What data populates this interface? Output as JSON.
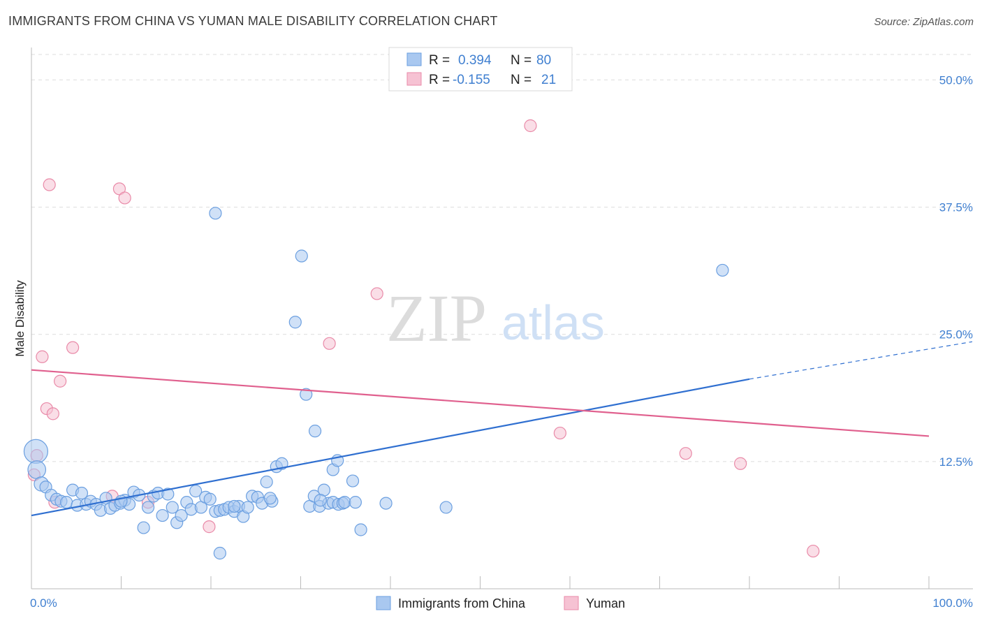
{
  "title": "IMMIGRANTS FROM CHINA VS YUMAN MALE DISABILITY CORRELATION CHART",
  "source": "Source: ZipAtlas.com",
  "watermark": {
    "zip": "ZIP",
    "atlas": "atlas"
  },
  "legend_top": [
    {
      "r_label": "R =",
      "r_value": "0.394",
      "n_label": "N =",
      "n_value": "80"
    },
    {
      "r_label": "R =",
      "r_value": "-0.155",
      "n_label": "N =",
      "n_value": "21"
    }
  ],
  "legend_bottom": [
    "Immigrants from China",
    "Yuman"
  ],
  "colors": {
    "blue_fill": "#a9c8f0",
    "blue_stroke": "#6b9fe0",
    "blue_line": "#2f6fd0",
    "pink_fill": "#f6c2d3",
    "pink_stroke": "#e98aa8",
    "pink_line": "#e0608e",
    "tick_label": "#3f7fd0",
    "grid": "#dddddd"
  },
  "chart_data": {
    "type": "scatter",
    "xlabel": "",
    "ylabel": "Male Disability",
    "xlim": [
      0,
      100
    ],
    "ylim": [
      0,
      52.5
    ],
    "x_tick_labels": [
      {
        "value": 0,
        "label": "0.0%"
      },
      {
        "value": 100,
        "label": "100.0%"
      }
    ],
    "y_ticks": [
      {
        "value": 12.5,
        "label": "12.5%"
      },
      {
        "value": 25.0,
        "label": "25.0%"
      },
      {
        "value": 37.5,
        "label": "37.5%"
      },
      {
        "value": 50.0,
        "label": "50.0%"
      }
    ],
    "grid": "horizontal dashed",
    "series": [
      {
        "name": "Immigrants from China",
        "color": "#6b9fe0",
        "points": [
          [
            0.5,
            13.5,
            2.0
          ],
          [
            0.6,
            11.7,
            1.5
          ],
          [
            1.1,
            10.3,
            1.2
          ],
          [
            1.6,
            10.0,
            1.0
          ],
          [
            2.2,
            9.2,
            1.0
          ],
          [
            2.8,
            8.8,
            1.0
          ],
          [
            3.3,
            8.6,
            1.0
          ],
          [
            3.9,
            8.5,
            1.0
          ],
          [
            4.6,
            9.7,
            1.0
          ],
          [
            5.1,
            8.2,
            1.0
          ],
          [
            5.6,
            9.4,
            1.0
          ],
          [
            6.1,
            8.3,
            1.0
          ],
          [
            6.6,
            8.6,
            1.0
          ],
          [
            7.2,
            8.3,
            1.0
          ],
          [
            7.7,
            7.7,
            1.0
          ],
          [
            8.3,
            8.9,
            1.0
          ],
          [
            8.8,
            7.9,
            1.0
          ],
          [
            9.3,
            8.2,
            1.0
          ],
          [
            9.9,
            8.4,
            1.0
          ],
          [
            10.4,
            8.7,
            1.0
          ],
          [
            10.9,
            8.3,
            1.0
          ],
          [
            11.4,
            9.5,
            1.0
          ],
          [
            12.0,
            9.2,
            1.0
          ],
          [
            12.5,
            6.0,
            1.0
          ],
          [
            13.0,
            8.0,
            1.0
          ],
          [
            13.6,
            9.1,
            1.0
          ],
          [
            14.1,
            9.4,
            1.0
          ],
          [
            14.6,
            7.2,
            1.0
          ],
          [
            15.2,
            9.3,
            1.0
          ],
          [
            15.7,
            8.0,
            1.0
          ],
          [
            16.2,
            6.5,
            1.0
          ],
          [
            16.7,
            7.2,
            1.0
          ],
          [
            17.3,
            8.5,
            1.0
          ],
          [
            17.8,
            7.8,
            1.0
          ],
          [
            18.3,
            9.6,
            1.0
          ],
          [
            18.9,
            8.0,
            1.0
          ],
          [
            19.4,
            9.0,
            1.0
          ],
          [
            19.9,
            8.8,
            1.0
          ],
          [
            20.5,
            7.6,
            1.0
          ],
          [
            21.0,
            7.7,
            1.0
          ],
          [
            21.5,
            7.8,
            1.0
          ],
          [
            22.0,
            8.0,
            1.0
          ],
          [
            22.6,
            7.6,
            1.0
          ],
          [
            23.1,
            8.1,
            1.0
          ],
          [
            23.6,
            7.1,
            1.0
          ],
          [
            24.1,
            8.0,
            1.0
          ],
          [
            24.6,
            9.1,
            1.0
          ],
          [
            20.5,
            36.9,
            1.0
          ],
          [
            21.0,
            3.5,
            1.0
          ],
          [
            22.6,
            8.1,
            1.0
          ],
          [
            25.2,
            9.0,
            1.0
          ],
          [
            25.7,
            8.4,
            1.0
          ],
          [
            26.2,
            10.5,
            1.0
          ],
          [
            26.8,
            8.6,
            1.0
          ],
          [
            27.3,
            12.0,
            1.0
          ],
          [
            27.9,
            12.3,
            1.0
          ],
          [
            31.0,
            8.1,
            1.0
          ],
          [
            31.5,
            9.1,
            1.0
          ],
          [
            32.1,
            8.1,
            1.0
          ],
          [
            32.6,
            9.7,
            1.0
          ],
          [
            33.1,
            8.4,
            1.0
          ],
          [
            33.6,
            8.5,
            1.0
          ],
          [
            34.2,
            8.3,
            1.0
          ],
          [
            34.7,
            8.4,
            1.0
          ],
          [
            34.9,
            8.5,
            1.0
          ],
          [
            29.4,
            26.2,
            1.0
          ],
          [
            30.1,
            32.7,
            1.0
          ],
          [
            30.6,
            19.1,
            1.0
          ],
          [
            31.6,
            15.5,
            1.0
          ],
          [
            32.2,
            8.7,
            1.0
          ],
          [
            33.6,
            11.7,
            1.0
          ],
          [
            34.1,
            12.6,
            1.0
          ],
          [
            35.8,
            10.6,
            1.0
          ],
          [
            36.1,
            8.5,
            1.0
          ],
          [
            36.7,
            5.8,
            1.0
          ],
          [
            39.5,
            8.4,
            1.0
          ],
          [
            46.2,
            8.0,
            1.0
          ],
          [
            77.0,
            31.3,
            1.0
          ],
          [
            10.0,
            8.6,
            1.0
          ],
          [
            26.6,
            8.9,
            1.0
          ]
        ]
      },
      {
        "name": "Yuman",
        "color": "#e98aa8",
        "points": [
          [
            0.3,
            11.2,
            1.0
          ],
          [
            0.6,
            13.1,
            1.0
          ],
          [
            1.2,
            22.8,
            1.0
          ],
          [
            1.7,
            17.7,
            1.0
          ],
          [
            2.0,
            39.7,
            1.0
          ],
          [
            2.4,
            17.2,
            1.0
          ],
          [
            3.2,
            20.4,
            1.0
          ],
          [
            4.6,
            23.7,
            1.0
          ],
          [
            9.0,
            9.1,
            1.0
          ],
          [
            9.8,
            39.3,
            1.0
          ],
          [
            10.4,
            38.4,
            1.0
          ],
          [
            13.0,
            8.5,
            1.0
          ],
          [
            19.8,
            6.1,
            1.0
          ],
          [
            33.2,
            24.1,
            1.0
          ],
          [
            38.5,
            29.0,
            1.0
          ],
          [
            55.6,
            45.5,
            1.0
          ],
          [
            58.9,
            15.3,
            1.0
          ],
          [
            72.9,
            13.3,
            1.0
          ],
          [
            79.0,
            12.3,
            1.0
          ],
          [
            87.1,
            3.7,
            1.0
          ],
          [
            2.6,
            8.5,
            1.0
          ]
        ]
      }
    ],
    "trend_lines": [
      {
        "series": "Immigrants from China",
        "x1": 0,
        "y1": 7.2,
        "x2": 80,
        "y2": 20.6,
        "dashed_extension_to": [
          100,
          24.0
        ]
      },
      {
        "series": "Yuman",
        "x1": 0,
        "y1": 21.5,
        "x2": 100,
        "y2": 15.0
      }
    ]
  }
}
